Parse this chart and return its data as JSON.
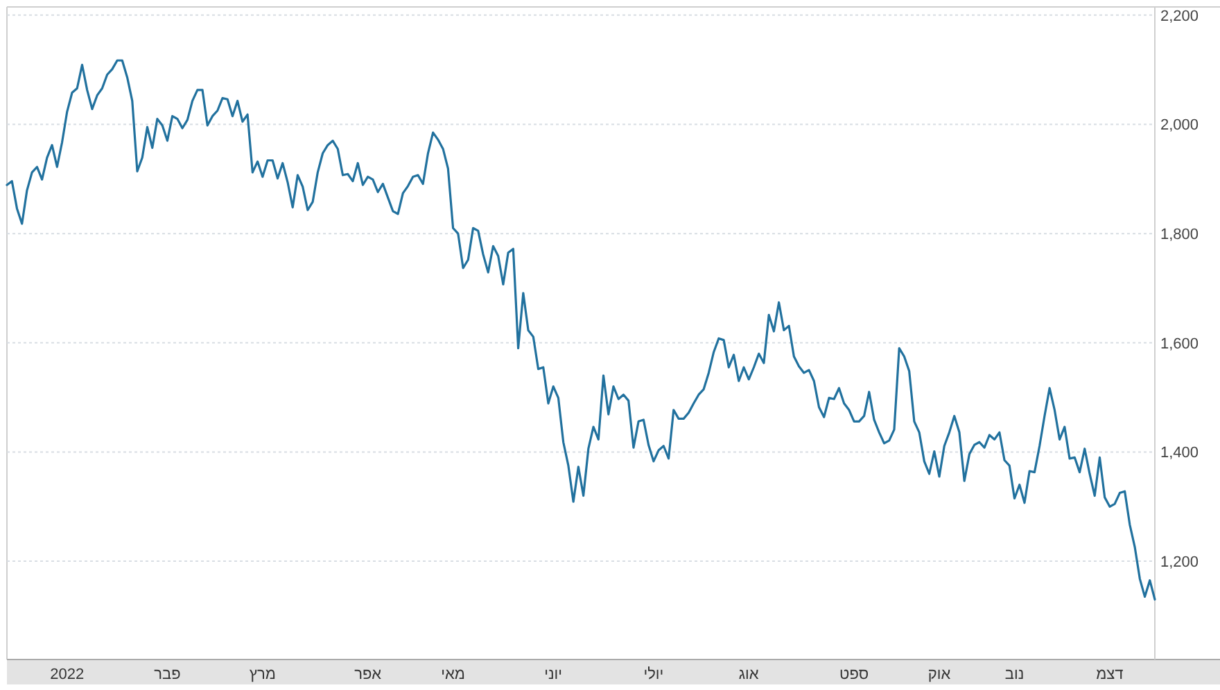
{
  "chart_data": {
    "type": "line",
    "grid": "y",
    "categories": [
      null,
      null,
      null,
      null,
      null,
      null,
      null,
      null,
      null,
      null,
      null,
      null,
      "2022",
      null,
      null,
      null,
      null,
      null,
      null,
      null,
      null,
      null,
      null,
      null,
      null,
      null,
      null,
      null,
      null,
      null,
      null,
      null,
      "פבר",
      null,
      null,
      null,
      null,
      null,
      null,
      null,
      null,
      null,
      null,
      null,
      null,
      null,
      null,
      null,
      null,
      null,
      null,
      "מרץ",
      null,
      null,
      null,
      null,
      null,
      null,
      null,
      null,
      null,
      null,
      null,
      null,
      null,
      null,
      null,
      null,
      null,
      null,
      null,
      null,
      "אפר",
      null,
      null,
      null,
      null,
      null,
      null,
      null,
      null,
      null,
      null,
      null,
      null,
      null,
      null,
      null,
      null,
      "מאי",
      null,
      null,
      null,
      null,
      null,
      null,
      null,
      null,
      null,
      null,
      null,
      null,
      null,
      null,
      null,
      null,
      null,
      null,
      null,
      "יוני",
      null,
      null,
      null,
      null,
      null,
      null,
      null,
      null,
      null,
      null,
      null,
      null,
      null,
      null,
      null,
      null,
      null,
      null,
      null,
      "יולי",
      null,
      null,
      null,
      null,
      null,
      null,
      null,
      null,
      null,
      null,
      null,
      null,
      null,
      null,
      null,
      null,
      null,
      null,
      "אוג",
      null,
      null,
      null,
      null,
      null,
      null,
      null,
      null,
      null,
      null,
      null,
      null,
      null,
      null,
      null,
      null,
      null,
      null,
      null,
      null,
      "ספט",
      null,
      null,
      null,
      null,
      null,
      null,
      null,
      null,
      null,
      null,
      null,
      null,
      null,
      null,
      null,
      null,
      "אוק",
      null,
      null,
      null,
      null,
      null,
      null,
      null,
      null,
      null,
      null,
      null,
      null,
      null,
      null,
      "נוב",
      null,
      null,
      null,
      null,
      null,
      null,
      null,
      null,
      null,
      null,
      null,
      null,
      null,
      null,
      null,
      null,
      null,
      null,
      "דצמ",
      null,
      null,
      null,
      null,
      null,
      null,
      null,
      null,
      null
    ],
    "values": [
      1889,
      1896,
      1846,
      1818,
      1879,
      1912,
      1922,
      1899,
      1939,
      1962,
      1922,
      1967,
      2023,
      2058,
      2066,
      2109,
      2063,
      2028,
      2053,
      2066,
      2091,
      2101,
      2117,
      2117,
      2086,
      2043,
      1914,
      1939,
      1995,
      1957,
      2010,
      1998,
      1970,
      2015,
      2010,
      1993,
      2008,
      2043,
      2063,
      2063,
      1998,
      2015,
      2025,
      2048,
      2046,
      2015,
      2043,
      2005,
      2018,
      1912,
      1932,
      1904,
      1934,
      1934,
      1901,
      1929,
      1894,
      1848,
      1907,
      1886,
      1843,
      1858,
      1912,
      1947,
      1962,
      1970,
      1955,
      1907,
      1909,
      1896,
      1929,
      1889,
      1904,
      1899,
      1876,
      1891,
      1866,
      1841,
      1836,
      1874,
      1887,
      1904,
      1907,
      1891,
      1947,
      1985,
      1972,
      1955,
      1919,
      1810,
      1800,
      1737,
      1752,
      1810,
      1805,
      1762,
      1729,
      1777,
      1759,
      1707,
      1765,
      1772,
      1590,
      1691,
      1623,
      1611,
      1552,
      1555,
      1489,
      1520,
      1499,
      1418,
      1375,
      1309,
      1373,
      1320,
      1406,
      1446,
      1423,
      1540,
      1469,
      1520,
      1497,
      1505,
      1494,
      1408,
      1456,
      1459,
      1413,
      1383,
      1403,
      1411,
      1388,
      1477,
      1461,
      1461,
      1472,
      1489,
      1505,
      1515,
      1545,
      1583,
      1608,
      1605,
      1555,
      1578,
      1530,
      1555,
      1533,
      1555,
      1580,
      1563,
      1651,
      1621,
      1674,
      1623,
      1631,
      1575,
      1557,
      1545,
      1550,
      1530,
      1482,
      1464,
      1499,
      1497,
      1517,
      1489,
      1477,
      1456,
      1456,
      1466,
      1510,
      1459,
      1436,
      1416,
      1421,
      1441,
      1590,
      1575,
      1548,
      1456,
      1436,
      1383,
      1360,
      1401,
      1355,
      1411,
      1436,
      1466,
      1436,
      1347,
      1396,
      1413,
      1418,
      1408,
      1431,
      1423,
      1436,
      1385,
      1375,
      1315,
      1340,
      1307,
      1365,
      1363,
      1411,
      1466,
      1517,
      1477,
      1423,
      1446,
      1388,
      1390,
      1363,
      1406,
      1360,
      1320,
      1390,
      1317,
      1300,
      1305,
      1325,
      1328,
      1267,
      1226,
      1168,
      1135,
      1165,
      1130
    ],
    "color": "#21719e",
    "ylim": [
      1020,
      2215
    ],
    "yticks": [
      {
        "value": 1200,
        "label": "1,200"
      },
      {
        "value": 1400,
        "label": "1,400"
      },
      {
        "value": 1600,
        "label": "1,600"
      },
      {
        "value": 1800,
        "label": "1,800"
      },
      {
        "value": 2000,
        "label": "2,000"
      },
      {
        "value": 2200,
        "label": "2,200"
      }
    ]
  }
}
